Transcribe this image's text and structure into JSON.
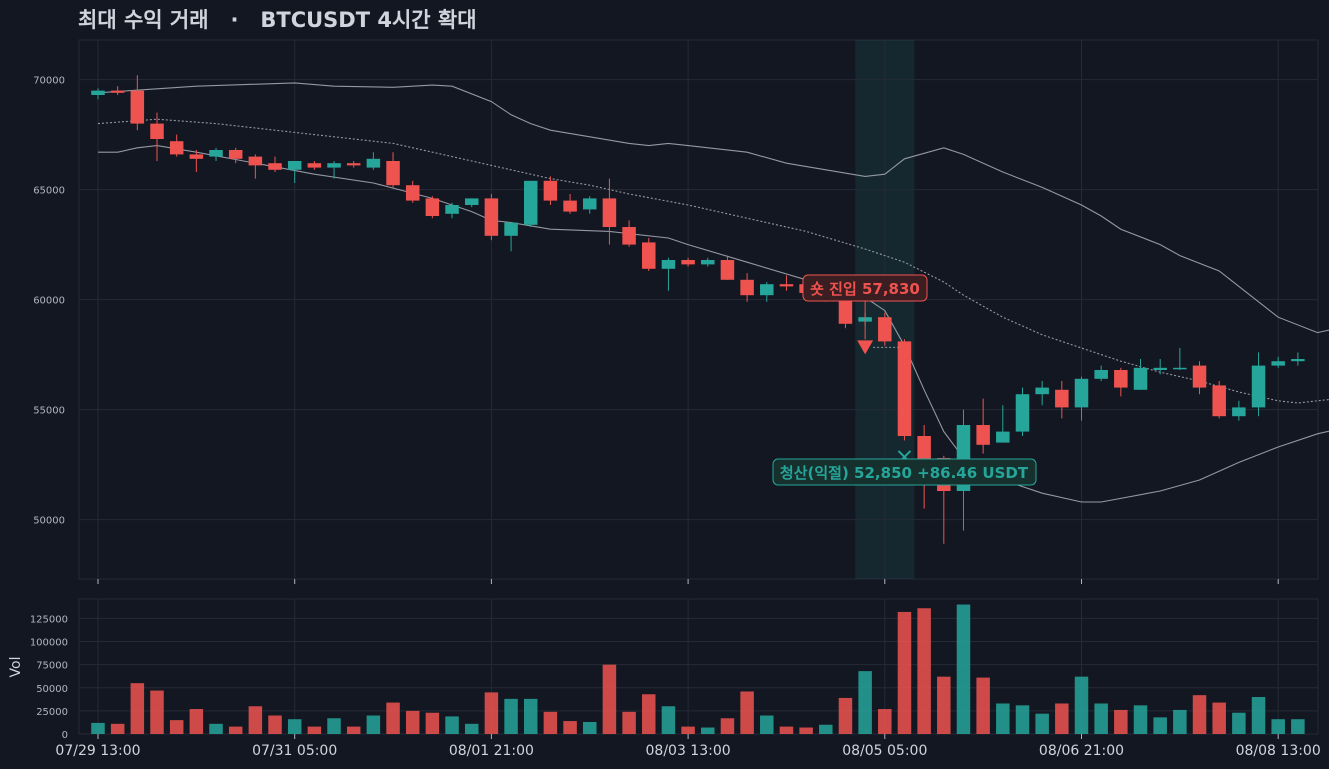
{
  "title": "최대 수익 거래   ·   BTCUSDT 4시간 확대",
  "colors": {
    "background": "#131722",
    "up": "#26a69a",
    "down": "#ef5350",
    "band": "#9598a1",
    "grid": "#252a36"
  },
  "chart_data": {
    "type": "candlestick",
    "timeframe": "4h",
    "price_axis": {
      "ylim": [
        47300,
        71800
      ],
      "ticks": [
        50000,
        55000,
        60000,
        65000,
        70000
      ]
    },
    "volume_axis": {
      "ylabel": "Vol",
      "ylim": [
        0,
        146000
      ],
      "ticks": [
        0,
        25000,
        50000,
        75000,
        100000,
        125000
      ]
    },
    "x_ticks": [
      {
        "i": 0,
        "label": "07/29 13:00"
      },
      {
        "i": 10,
        "label": "07/31 05:00"
      },
      {
        "i": 20,
        "label": "08/01 21:00"
      },
      {
        "i": 30,
        "label": "08/03 13:00"
      },
      {
        "i": 40,
        "label": "08/05 05:00"
      },
      {
        "i": 50,
        "label": "08/06 21:00"
      },
      {
        "i": 60,
        "label": "08/08 13:00"
      }
    ],
    "candles": [
      [
        69300,
        69600,
        69100,
        69500,
        12000
      ],
      [
        69500,
        69700,
        69300,
        69400,
        11000
      ],
      [
        69500,
        70200,
        67700,
        68000,
        55000
      ],
      [
        68000,
        68500,
        66300,
        67300,
        47000
      ],
      [
        67200,
        67500,
        66500,
        66600,
        15000
      ],
      [
        66600,
        66800,
        65800,
        66400,
        27000
      ],
      [
        66500,
        66900,
        66300,
        66800,
        11000
      ],
      [
        66800,
        66900,
        66200,
        66400,
        8000
      ],
      [
        66500,
        66600,
        65500,
        66100,
        30000
      ],
      [
        66200,
        66500,
        65800,
        65900,
        20000
      ],
      [
        65900,
        66300,
        65300,
        66300,
        16000
      ],
      [
        66200,
        66300,
        65900,
        66000,
        8000
      ],
      [
        66000,
        66300,
        65500,
        66200,
        17000
      ],
      [
        66200,
        66300,
        66000,
        66100,
        8000
      ],
      [
        66000,
        66700,
        65900,
        66400,
        20000
      ],
      [
        66300,
        66700,
        65100,
        65200,
        34000
      ],
      [
        65200,
        65400,
        64400,
        64500,
        25000
      ],
      [
        64600,
        64700,
        63700,
        63800,
        23000
      ],
      [
        63900,
        64400,
        63700,
        64300,
        19000
      ],
      [
        64300,
        64600,
        64200,
        64600,
        11000
      ],
      [
        64600,
        64800,
        62700,
        62900,
        45000
      ],
      [
        62900,
        63500,
        62200,
        63500,
        38000
      ],
      [
        63400,
        65400,
        63300,
        65400,
        38000
      ],
      [
        65400,
        65600,
        64300,
        64500,
        24000
      ],
      [
        64500,
        64800,
        63900,
        64000,
        14000
      ],
      [
        64100,
        64700,
        63900,
        64600,
        13000
      ],
      [
        64600,
        65500,
        62500,
        63300,
        75000
      ],
      [
        63300,
        63600,
        62400,
        62500,
        24000
      ],
      [
        62600,
        62800,
        61300,
        61400,
        43000
      ],
      [
        61400,
        61900,
        60400,
        61800,
        30000
      ],
      [
        61800,
        61900,
        61500,
        61600,
        8000
      ],
      [
        61600,
        61900,
        61500,
        61800,
        7000
      ],
      [
        61800,
        62000,
        60900,
        60900,
        17000
      ],
      [
        60900,
        61200,
        59900,
        60200,
        46000
      ],
      [
        60200,
        60800,
        59900,
        60700,
        20000
      ],
      [
        60700,
        61100,
        60400,
        60600,
        8000
      ],
      [
        60700,
        60900,
        60100,
        60300,
        7000
      ],
      [
        60100,
        60900,
        59900,
        60200,
        10000
      ],
      [
        60200,
        60700,
        58700,
        58900,
        39000
      ],
      [
        59000,
        59400,
        58800,
        59200,
        68000
      ],
      [
        59200,
        59400,
        57900,
        58100,
        27000
      ],
      [
        58100,
        58200,
        53600,
        53800,
        132000
      ],
      [
        53800,
        54300,
        50500,
        52700,
        136000
      ],
      [
        52800,
        52900,
        48900,
        51300,
        62000
      ],
      [
        51300,
        55000,
        49500,
        54300,
        140000
      ],
      [
        54300,
        55500,
        53000,
        53400,
        61000
      ],
      [
        53500,
        55200,
        53500,
        54000,
        33000
      ],
      [
        54000,
        56000,
        53800,
        55700,
        31000
      ],
      [
        55700,
        56300,
        55200,
        56000,
        22000
      ],
      [
        55900,
        56300,
        54600,
        55100,
        33000
      ],
      [
        55100,
        56500,
        54500,
        56400,
        62000
      ],
      [
        56400,
        57000,
        56300,
        56800,
        33000
      ],
      [
        56800,
        56900,
        55600,
        56000,
        26000
      ],
      [
        55900,
        57300,
        55900,
        56900,
        31000
      ],
      [
        56800,
        57300,
        56600,
        56900,
        18000
      ],
      [
        56900,
        57800,
        56800,
        56900,
        26000
      ],
      [
        57000,
        57200,
        55700,
        56000,
        42000
      ],
      [
        56100,
        56300,
        54600,
        54700,
        34000
      ],
      [
        54700,
        55400,
        54500,
        55100,
        23000
      ],
      [
        55100,
        57600,
        54700,
        57000,
        40000
      ],
      [
        57000,
        57400,
        56900,
        57200,
        16000
      ],
      [
        57200,
        57600,
        57000,
        57300,
        16000
      ]
    ],
    "bollinger": {
      "upper": [
        [
          0,
          69400
        ],
        [
          5,
          69700
        ],
        [
          10,
          69850
        ],
        [
          12,
          69700
        ],
        [
          15,
          69650
        ],
        [
          17,
          69750
        ],
        [
          18,
          69700
        ],
        [
          20,
          69000
        ],
        [
          21,
          68400
        ],
        [
          22,
          68000
        ],
        [
          23,
          67700
        ],
        [
          25,
          67400
        ],
        [
          27,
          67100
        ],
        [
          28,
          67000
        ],
        [
          29,
          67100
        ],
        [
          30,
          67000
        ],
        [
          33,
          66700
        ],
        [
          35,
          66200
        ],
        [
          37,
          65900
        ],
        [
          39,
          65600
        ],
        [
          40,
          65700
        ],
        [
          41,
          66400
        ],
        [
          43,
          66900
        ],
        [
          44,
          66600
        ],
        [
          46,
          65800
        ],
        [
          48,
          65100
        ],
        [
          50,
          64300
        ],
        [
          51,
          63800
        ],
        [
          52,
          63200
        ],
        [
          54,
          62500
        ],
        [
          55,
          62000
        ],
        [
          57,
          61300
        ],
        [
          58,
          60600
        ],
        [
          60,
          59200
        ],
        [
          62,
          58500
        ],
        [
          63,
          58700
        ]
      ],
      "mid": [
        [
          0,
          68000
        ],
        [
          3,
          68200
        ],
        [
          6,
          68000
        ],
        [
          9,
          67700
        ],
        [
          12,
          67400
        ],
        [
          15,
          67100
        ],
        [
          17,
          66700
        ],
        [
          19,
          66300
        ],
        [
          21,
          65900
        ],
        [
          23,
          65500
        ],
        [
          25,
          65200
        ],
        [
          27,
          64800
        ],
        [
          30,
          64300
        ],
        [
          33,
          63700
        ],
        [
          36,
          63100
        ],
        [
          39,
          62300
        ],
        [
          41,
          61700
        ],
        [
          43,
          60800
        ],
        [
          44,
          60200
        ],
        [
          46,
          59200
        ],
        [
          48,
          58400
        ],
        [
          50,
          57800
        ],
        [
          52,
          57200
        ],
        [
          54,
          56700
        ],
        [
          56,
          56300
        ],
        [
          58,
          55800
        ],
        [
          60,
          55400
        ],
        [
          61,
          55300
        ],
        [
          63,
          55500
        ]
      ],
      "lower": [
        [
          0,
          66700
        ],
        [
          1,
          66700
        ],
        [
          2,
          66900
        ],
        [
          3,
          67000
        ],
        [
          5,
          66700
        ],
        [
          8,
          66200
        ],
        [
          11,
          65700
        ],
        [
          14,
          65300
        ],
        [
          17,
          64600
        ],
        [
          18,
          64300
        ],
        [
          19,
          64000
        ],
        [
          20,
          63600
        ],
        [
          21,
          63500
        ],
        [
          23,
          63200
        ],
        [
          26,
          63100
        ],
        [
          29,
          62800
        ],
        [
          30,
          62500
        ],
        [
          33,
          61700
        ],
        [
          36,
          60900
        ],
        [
          39,
          60100
        ],
        [
          40,
          59500
        ],
        [
          41,
          57900
        ],
        [
          42,
          55900
        ],
        [
          43,
          54000
        ],
        [
          44,
          52800
        ],
        [
          45,
          52200
        ],
        [
          46,
          51800
        ],
        [
          48,
          51200
        ],
        [
          50,
          50800
        ],
        [
          51,
          50800
        ],
        [
          54,
          51300
        ],
        [
          56,
          51800
        ],
        [
          58,
          52600
        ],
        [
          60,
          53300
        ],
        [
          62,
          53900
        ],
        [
          63,
          54100
        ]
      ]
    },
    "trade": {
      "entry": {
        "i": 39,
        "price": 57830,
        "label": "숏 진입 57,830"
      },
      "exit": {
        "i": 41,
        "price": 52850,
        "label": "청산(익절) 52,850  +86.46 USDT"
      },
      "highlight": [
        38.5,
        41.5
      ]
    }
  }
}
